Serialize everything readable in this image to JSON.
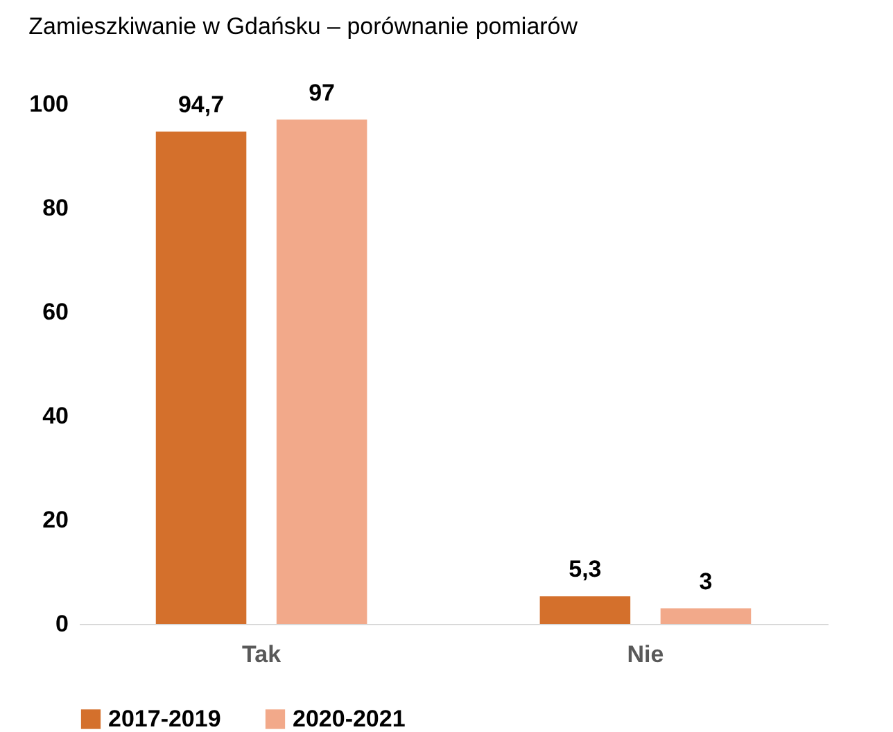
{
  "chart_data": {
    "type": "bar",
    "title": "Zamieszkiwanie w Gdańsku – porównanie pomiarów",
    "categories": [
      "Tak",
      "Nie"
    ],
    "series": [
      {
        "name": "2017-2019",
        "color": "#d4702c",
        "values": [
          94.7,
          5.3
        ],
        "value_labels": [
          "94,7",
          "5,3"
        ]
      },
      {
        "name": "2020-2021",
        "color": "#f2a98a",
        "values": [
          97,
          3
        ],
        "value_labels": [
          "97",
          "3"
        ]
      }
    ],
    "ylim": [
      0,
      100
    ],
    "yticks": [
      0,
      20,
      40,
      60,
      80,
      100
    ],
    "grid": false,
    "legend": "bottom"
  }
}
